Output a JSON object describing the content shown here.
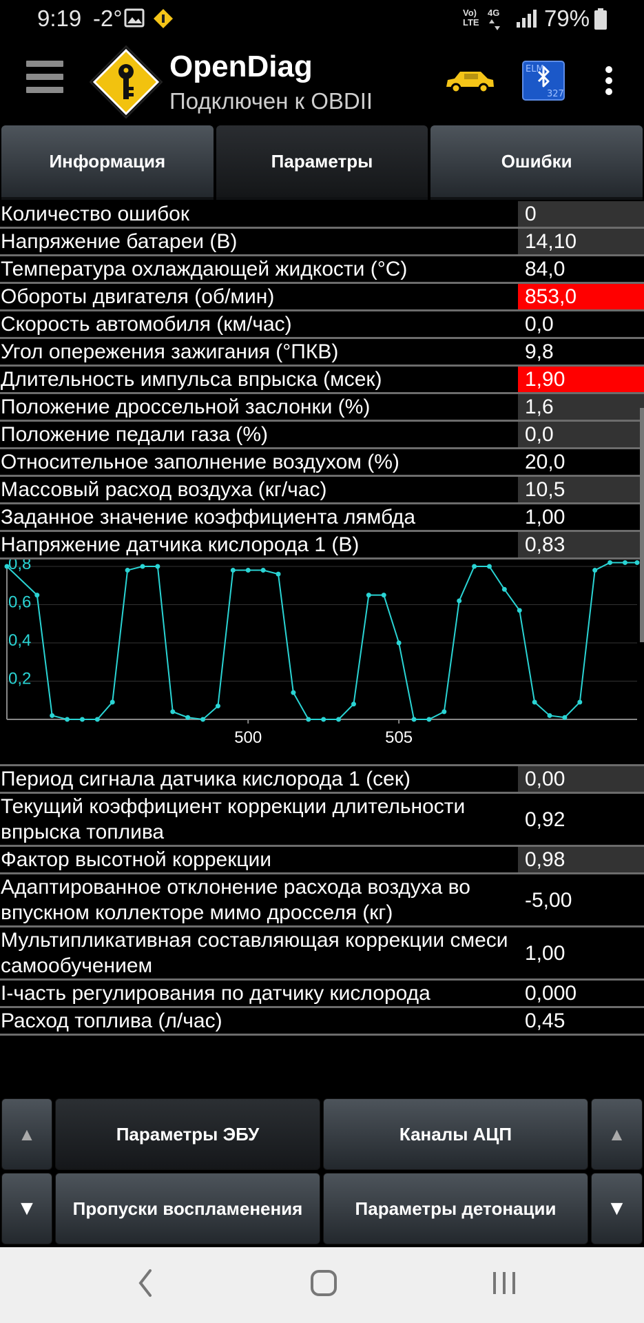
{
  "status_bar": {
    "time": "9:19",
    "temperature": "-2°",
    "network_top": "Vo)",
    "network_bottom": "LTE",
    "network_gen": "4G",
    "battery_percent": "79%"
  },
  "app_bar": {
    "title": "OpenDiag",
    "subtitle": "Подключен к OBDII",
    "logo_icon": "key-diamond-icon",
    "car_icon": "car-icon",
    "bt_icon": "bluetooth-elm-icon",
    "menu_icon": "more-vert-icon",
    "bt_badge_top": "ELM",
    "bt_badge_bottom": "327"
  },
  "tabs": [
    {
      "label": "Информация",
      "active": false
    },
    {
      "label": "Параметры",
      "active": true
    },
    {
      "label": "Ошибки",
      "active": false
    }
  ],
  "params_top": [
    {
      "label": "Количество ошибок",
      "value": "0",
      "state": "dark"
    },
    {
      "label": "Напряжение батареи (В)",
      "value": "14,10",
      "state": "dark"
    },
    {
      "label": "Температура охлаждающей жидкости (°С)",
      "value": "84,0",
      "state": "black"
    },
    {
      "label": "Обороты двигателя (об/мин)",
      "value": "853,0",
      "state": "alarm"
    },
    {
      "label": "Скорость автомобиля (км/час)",
      "value": "0,0",
      "state": "black"
    },
    {
      "label": "Угол опережения зажигания (°ПКВ)",
      "value": "9,8",
      "state": "black"
    },
    {
      "label": "Длительность импульса впрыска (мсек)",
      "value": "1,90",
      "state": "alarm"
    },
    {
      "label": "Положение дроссельной заслонки (%)",
      "value": "1,6",
      "state": "dark"
    },
    {
      "label": "Положение педали газа (%)",
      "value": "0,0",
      "state": "dark"
    },
    {
      "label": "Относительное заполнение воздухом (%)",
      "value": "20,0",
      "state": "black"
    },
    {
      "label": "Массовый расход воздуха (кг/час)",
      "value": "10,5",
      "state": "dark"
    },
    {
      "label": "Заданное значение коэффициента лямбда",
      "value": "1,00",
      "state": "black"
    },
    {
      "label": "Напряжение датчика кислорода 1 (В)",
      "value": "0,83",
      "state": "dark"
    }
  ],
  "params_bottom": [
    {
      "label": "Период сигнала датчика кислорода 1 (сек)",
      "value": "0,00",
      "state": "dark"
    },
    {
      "label": "Текущий коэффициент коррекции длительности впрыска топлива",
      "value": "0,92",
      "state": "black"
    },
    {
      "label": "Фактор высотной коррекции",
      "value": "0,98",
      "state": "dark"
    },
    {
      "label": "Адаптированное отклонение расхода воздуха во впускном коллекторе мимо дросселя (кг)",
      "value": "-5,00",
      "state": "black"
    },
    {
      "label": "Мультипликативная составляющая коррекции смеси самообучением",
      "value": "1,00",
      "state": "black"
    },
    {
      "label": "I-часть регулирования по датчику кислорода",
      "value": "0,000",
      "state": "black"
    },
    {
      "label": "Расход топлива (л/час)",
      "value": "0,45",
      "state": "black"
    }
  ],
  "chart_data": {
    "type": "line",
    "title": "",
    "xlabel": "",
    "ylabel": "",
    "xlim": [
      492,
      512.9
    ],
    "ylim": [
      0,
      0.8
    ],
    "x_ticks": [
      "500",
      "505"
    ],
    "y_ticks": [
      "0,2",
      "0,4",
      "0,6",
      "0,8"
    ],
    "color": "#2ad4d4",
    "series": [
      {
        "x": [
          492.0,
          493.0,
          493.5,
          494.0,
          494.5,
          495.0,
          495.5,
          496.0,
          496.5,
          497.0,
          497.5,
          498.0,
          498.5,
          499.0,
          499.5,
          500.0,
          500.5,
          501.0,
          501.5,
          502.0,
          502.5,
          503.0,
          503.5,
          504.0,
          504.5,
          505.0,
          505.5,
          506.0,
          506.5,
          507.0,
          507.5,
          508.0,
          508.5,
          509.0,
          509.5,
          510.0,
          510.5,
          511.0,
          511.5,
          512.0,
          512.5,
          512.9
        ],
        "y": [
          0.8,
          0.65,
          0.02,
          0.0,
          0.0,
          0.0,
          0.09,
          0.78,
          0.8,
          0.8,
          0.04,
          0.01,
          0.0,
          0.07,
          0.78,
          0.78,
          0.78,
          0.76,
          0.14,
          0.0,
          0.0,
          0.0,
          0.08,
          0.65,
          0.65,
          0.4,
          0.0,
          0.0,
          0.04,
          0.62,
          0.8,
          0.8,
          0.68,
          0.57,
          0.09,
          0.02,
          0.01,
          0.09,
          0.78,
          0.82,
          0.82,
          0.82
        ]
      }
    ]
  },
  "bottom_buttons": {
    "ecu_params": "Параметры ЭБУ",
    "adc_channels": "Каналы АЦП",
    "misfires": "Пропуски воспламенения",
    "knock_params": "Параметры детонации",
    "up_arrow": "▲",
    "down_arrow": "▼"
  },
  "nav": {
    "back_icon": "back-icon",
    "home_icon": "home-icon",
    "recents_icon": "recents-icon"
  }
}
